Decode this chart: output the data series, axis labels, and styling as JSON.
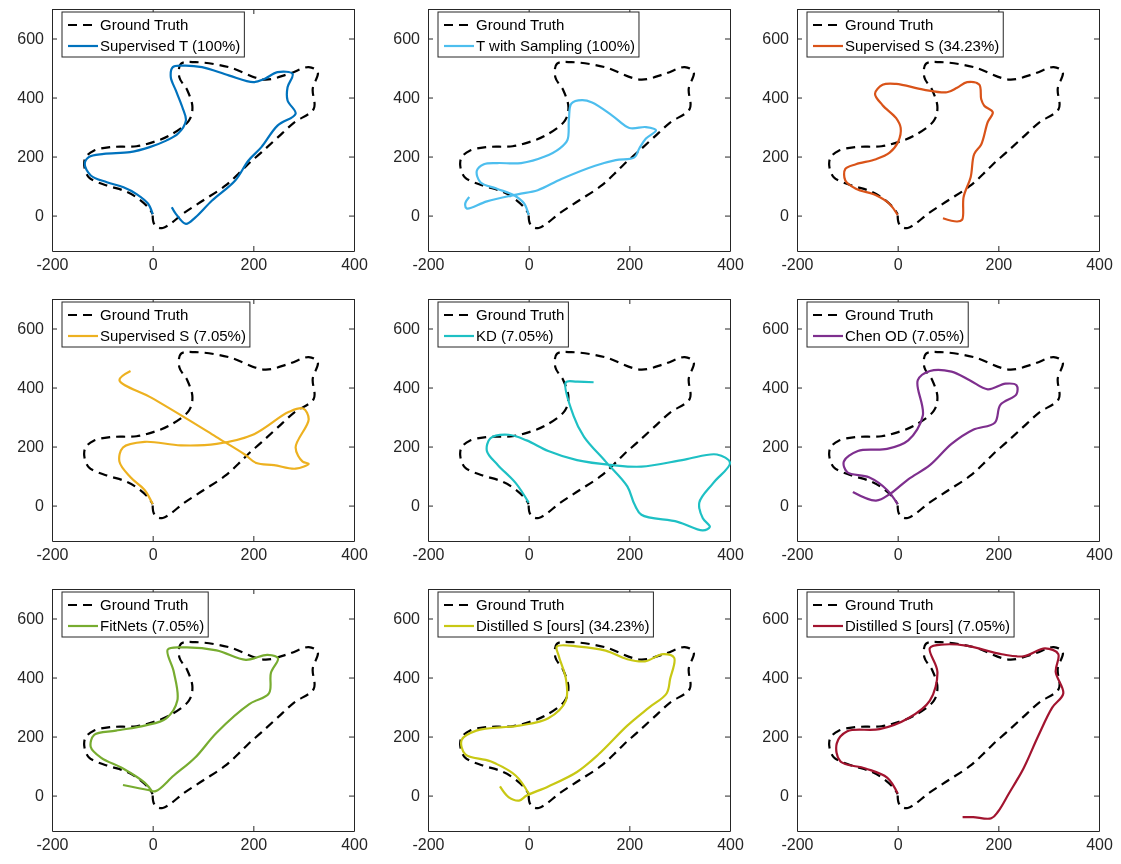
{
  "chart_data": [
    {
      "type": "line",
      "xlim": [
        -200,
        400
      ],
      "ylim": [
        -120,
        700
      ],
      "xticks": [
        -200,
        0,
        200,
        400
      ],
      "yticks": [
        0,
        200,
        400,
        600
      ],
      "legend": "top left",
      "grid": false,
      "series": [
        {
          "name": "Ground Truth",
          "color": "#000000",
          "line_style": "dashed",
          "x": [
            0,
            2,
            10,
            20,
            35,
            60,
            100,
            145,
            170,
            190,
            216,
            248,
            281,
            320,
            318,
            328,
            310,
            270,
            222,
            151,
            85,
            56,
            53,
            69,
            79,
            72,
            33,
            1,
            -32,
            -84,
            -117,
            -133,
            -136,
            -127,
            -91,
            -58,
            -32,
            -9,
            0
          ],
          "values": [
            0,
            -25,
            -40,
            -42,
            -28,
            6,
            51,
            102,
            141,
            175,
            214,
            264,
            315,
            362,
            430,
            486,
            503,
            480,
            461,
            503,
            520,
            514,
            469,
            424,
            367,
            322,
            271,
            249,
            235,
            232,
            220,
            198,
            170,
            130,
            102,
            85,
            62,
            28,
            5
          ]
        },
        {
          "name": "Supervised T (100%)",
          "color": "#0072bd",
          "line_style": "solid",
          "x": [
            0,
            -9,
            -32,
            -58,
            -91,
            -123,
            -135,
            -127,
            -97,
            -45,
            -6,
            27,
            50,
            66,
            59,
            46,
            36,
            40,
            59,
            98,
            151,
            200,
            222,
            248,
            278,
            268,
            268,
            284,
            248,
            216,
            190,
            164,
            118,
            85,
            66,
            46,
            38
          ],
          "values": [
            5,
            40,
            73,
            96,
            113,
            136,
            175,
            198,
            209,
            215,
            232,
            254,
            277,
            322,
            367,
            424,
            469,
            503,
            508,
            503,
            475,
            452,
            463,
            486,
            480,
            435,
            390,
            345,
            305,
            232,
            186,
            119,
            51,
            -6,
            -28,
            6,
            28
          ]
        }
      ]
    },
    {
      "type": "line",
      "xlim": [
        -200,
        400
      ],
      "ylim": [
        -120,
        700
      ],
      "xticks": [
        -200,
        0,
        200,
        400
      ],
      "yticks": [
        0,
        200,
        400,
        600
      ],
      "legend": "top left",
      "grid": false,
      "series": [
        {
          "name": "Ground Truth",
          "color": "#000000",
          "line_style": "dashed",
          "x": [
            0,
            2,
            10,
            20,
            35,
            60,
            100,
            145,
            170,
            190,
            216,
            248,
            281,
            320,
            318,
            328,
            310,
            270,
            222,
            151,
            85,
            56,
            53,
            69,
            79,
            72,
            33,
            1,
            -32,
            -84,
            -117,
            -133,
            -136,
            -127,
            -91,
            -58,
            -32,
            -9,
            0
          ],
          "values": [
            0,
            -25,
            -40,
            -42,
            -28,
            6,
            51,
            102,
            141,
            175,
            214,
            264,
            315,
            362,
            430,
            486,
            503,
            480,
            461,
            503,
            520,
            514,
            469,
            424,
            367,
            322,
            271,
            249,
            235,
            232,
            220,
            198,
            170,
            130,
            102,
            85,
            62,
            28,
            5
          ]
        },
        {
          "name": "T with Sampling (100%)",
          "color": "#4dbeee",
          "line_style": "solid",
          "x": [
            0,
            -9,
            -29,
            -63,
            -96,
            -103,
            -89,
            -62,
            -15,
            32,
            62,
            77,
            80,
            85,
            106,
            126,
            166,
            200,
            233,
            253,
            233,
            220,
            210,
            173,
            132,
            65,
            18,
            -22,
            -83,
            -123,
            -126,
            -118
          ],
          "values": [
            2,
            41,
            69,
            91,
            113,
            152,
            174,
            178,
            178,
            200,
            228,
            256,
            328,
            380,
            391,
            383,
            339,
            297,
            300,
            289,
            261,
            228,
            197,
            188,
            169,
            124,
            86,
            72,
            48,
            24,
            41,
            63
          ]
        }
      ]
    },
    {
      "type": "line",
      "xlim": [
        -200,
        400
      ],
      "ylim": [
        -120,
        700
      ],
      "xticks": [
        -200,
        0,
        200,
        400
      ],
      "yticks": [
        0,
        200,
        400,
        600
      ],
      "legend": "top left",
      "grid": false,
      "series": [
        {
          "name": "Ground Truth",
          "color": "#000000",
          "line_style": "dashed",
          "x": [
            0,
            2,
            10,
            20,
            35,
            60,
            100,
            145,
            170,
            190,
            216,
            248,
            281,
            320,
            318,
            328,
            310,
            270,
            222,
            151,
            85,
            56,
            53,
            69,
            79,
            72,
            33,
            1,
            -32,
            -84,
            -117,
            -133,
            -136,
            -127,
            -91,
            -58,
            -32,
            -9,
            0
          ],
          "values": [
            0,
            -25,
            -40,
            -42,
            -28,
            6,
            51,
            102,
            141,
            175,
            214,
            264,
            315,
            362,
            430,
            486,
            503,
            480,
            461,
            503,
            520,
            514,
            469,
            424,
            367,
            322,
            271,
            249,
            235,
            232,
            220,
            198,
            170,
            130,
            102,
            85,
            62,
            28,
            5
          ]
        },
        {
          "name": "Supervised S (34.23%)",
          "color": "#d95319",
          "line_style": "solid",
          "x": [
            0,
            -17,
            -43,
            -83,
            -104,
            -104,
            -83,
            -43,
            -16,
            1,
            6,
            -3,
            -30,
            -45,
            -30,
            -3,
            51,
            98,
            118,
            138,
            162,
            166,
            172,
            189,
            179,
            166,
            152,
            145,
            131,
            128,
            118,
            90
          ],
          "values": [
            2,
            41,
            69,
            91,
            119,
            158,
            174,
            191,
            213,
            250,
            297,
            330,
            374,
            413,
            443,
            446,
            427,
            418,
            433,
            452,
            444,
            394,
            372,
            350,
            317,
            241,
            208,
            130,
            63,
            -14,
            -20,
            -9
          ]
        }
      ]
    },
    {
      "type": "line",
      "xlim": [
        -200,
        400
      ],
      "ylim": [
        -120,
        700
      ],
      "xticks": [
        -200,
        0,
        200,
        400
      ],
      "yticks": [
        0,
        200,
        400,
        600
      ],
      "legend": "top left",
      "grid": false,
      "series": [
        {
          "name": "Ground Truth",
          "color": "#000000",
          "line_style": "dashed",
          "x": [
            0,
            2,
            10,
            20,
            35,
            60,
            100,
            145,
            170,
            190,
            216,
            248,
            281,
            320,
            318,
            328,
            310,
            270,
            222,
            151,
            85,
            56,
            53,
            69,
            79,
            72,
            33,
            1,
            -32,
            -84,
            -117,
            -133,
            -136,
            -127,
            -91,
            -58,
            -32,
            -9,
            0
          ],
          "values": [
            0,
            -25,
            -40,
            -42,
            -28,
            6,
            51,
            102,
            141,
            175,
            214,
            264,
            315,
            362,
            430,
            486,
            503,
            480,
            461,
            503,
            520,
            514,
            469,
            424,
            367,
            322,
            271,
            249,
            235,
            232,
            220,
            198,
            170,
            130,
            102,
            85,
            62,
            28,
            5
          ]
        },
        {
          "name": "Supervised S (7.05%)",
          "color": "#edb120",
          "line_style": "solid",
          "x": [
            0,
            -16,
            -44,
            -66,
            -59,
            -16,
            56,
            127,
            199,
            270,
            299,
            310,
            284,
            298,
            310,
            284,
            241,
            206,
            183,
            126,
            69,
            -2,
            -66,
            -44
          ],
          "values": [
            5,
            53,
            96,
            149,
            197,
            216,
            204,
            209,
            240,
            317,
            329,
            293,
            197,
            149,
            142,
            125,
            137,
            144,
            173,
            233,
            293,
            365,
            425,
            456
          ]
        }
      ]
    },
    {
      "type": "line",
      "xlim": [
        -200,
        400
      ],
      "ylim": [
        -120,
        700
      ],
      "xticks": [
        -200,
        0,
        200,
        400
      ],
      "yticks": [
        0,
        200,
        400,
        600
      ],
      "legend": "top left",
      "grid": false,
      "series": [
        {
          "name": "Ground Truth",
          "color": "#000000",
          "line_style": "dashed",
          "x": [
            0,
            2,
            10,
            20,
            35,
            60,
            100,
            145,
            170,
            190,
            216,
            248,
            281,
            320,
            318,
            328,
            310,
            270,
            222,
            151,
            85,
            56,
            53,
            69,
            79,
            72,
            33,
            1,
            -32,
            -84,
            -117,
            -133,
            -136,
            -127,
            -91,
            -58,
            -32,
            -9,
            0
          ],
          "values": [
            0,
            -25,
            -40,
            -42,
            -28,
            6,
            51,
            102,
            141,
            175,
            214,
            264,
            315,
            362,
            430,
            486,
            503,
            480,
            461,
            503,
            520,
            514,
            469,
            424,
            367,
            322,
            271,
            249,
            235,
            232,
            220,
            198,
            170,
            130,
            102,
            85,
            62,
            28,
            5
          ]
        },
        {
          "name": "KD (7.05%)",
          "color": "#1ec0c4",
          "line_style": "solid",
          "x": [
            0,
            -26,
            -61,
            -83,
            -76,
            -40,
            -4,
            39,
            96,
            167,
            224,
            310,
            374,
            400,
            367,
            339,
            346,
            360,
            346,
            296,
            224,
            210,
            196,
            153,
            110,
            89,
            74,
            96,
            129
          ],
          "values": [
            10,
            77,
            137,
            185,
            228,
            240,
            221,
            185,
            154,
            137,
            132,
            156,
            173,
            145,
            77,
            10,
            -43,
            -72,
            -84,
            -55,
            -31,
            5,
            65,
            149,
            233,
            305,
            418,
            420,
            418
          ]
        }
      ]
    },
    {
      "type": "line",
      "xlim": [
        -200,
        400
      ],
      "ylim": [
        -120,
        700
      ],
      "xticks": [
        -200,
        0,
        200,
        400
      ],
      "yticks": [
        0,
        200,
        400,
        600
      ],
      "legend": "top left",
      "grid": false,
      "series": [
        {
          "name": "Ground Truth",
          "color": "#000000",
          "line_style": "dashed",
          "x": [
            0,
            2,
            10,
            20,
            35,
            60,
            100,
            145,
            170,
            190,
            216,
            248,
            281,
            320,
            318,
            328,
            310,
            270,
            222,
            151,
            85,
            56,
            53,
            69,
            79,
            72,
            33,
            1,
            -32,
            -84,
            -117,
            -133,
            -136,
            -127,
            -91,
            -58,
            -32,
            -9,
            0
          ],
          "values": [
            0,
            -25,
            -40,
            -42,
            -28,
            6,
            51,
            102,
            141,
            175,
            214,
            264,
            315,
            362,
            430,
            486,
            503,
            480,
            461,
            503,
            520,
            514,
            469,
            424,
            367,
            322,
            271,
            249,
            235,
            232,
            220,
            198,
            170,
            130,
            102,
            85,
            62,
            28,
            5
          ]
        },
        {
          "name": "Chen OD (7.05%)",
          "color": "#7e2f8e",
          "line_style": "solid",
          "x": [
            0,
            -21,
            -57,
            -100,
            -107,
            -79,
            -21,
            21,
            50,
            40,
            64,
            107,
            143,
            179,
            214,
            236,
            236,
            204,
            193,
            150,
            107,
            64,
            21,
            -14,
            -43,
            -89
          ],
          "values": [
            5,
            53,
            96,
            113,
            149,
            185,
            192,
            221,
            305,
            425,
            456,
            454,
            425,
            394,
            413,
            408,
            377,
            341,
            281,
            257,
            209,
            137,
            89,
            41,
            17,
            46
          ]
        }
      ]
    },
    {
      "type": "line",
      "xlim": [
        -200,
        400
      ],
      "ylim": [
        -120,
        700
      ],
      "xticks": [
        -200,
        0,
        200,
        400
      ],
      "yticks": [
        0,
        200,
        400,
        600
      ],
      "legend": "top left",
      "grid": false,
      "series": [
        {
          "name": "Ground Truth",
          "color": "#000000",
          "line_style": "dashed",
          "x": [
            0,
            2,
            10,
            20,
            35,
            60,
            100,
            145,
            170,
            190,
            216,
            248,
            281,
            320,
            318,
            328,
            310,
            270,
            222,
            151,
            85,
            56,
            53,
            69,
            79,
            72,
            33,
            1,
            -32,
            -84,
            -117,
            -133,
            -136,
            -127,
            -91,
            -58,
            -32,
            -9,
            0
          ],
          "values": [
            0,
            -25,
            -40,
            -42,
            -28,
            6,
            51,
            102,
            141,
            175,
            214,
            264,
            315,
            362,
            430,
            486,
            503,
            480,
            461,
            503,
            520,
            514,
            469,
            424,
            367,
            322,
            271,
            249,
            235,
            232,
            220,
            198,
            170,
            130,
            102,
            85,
            62,
            28,
            5
          ]
        },
        {
          "name": "FitNets (7.05%)",
          "color": "#77ac30",
          "line_style": "solid",
          "x": [
            0,
            -16,
            -59,
            -102,
            -123,
            -116,
            -73,
            -16,
            27,
            49,
            42,
            30,
            63,
            127,
            185,
            228,
            249,
            235,
            231,
            192,
            127,
            84,
            42,
            6,
            -9,
            -59
          ],
          "values": [
            12,
            44,
            92,
            128,
            165,
            206,
            220,
            237,
            262,
            322,
            419,
            495,
            502,
            492,
            460,
            477,
            465,
            416,
            346,
            310,
            213,
            128,
            68,
            15,
            19,
            36
          ]
        }
      ]
    },
    {
      "type": "line",
      "xlim": [
        -200,
        400
      ],
      "ylim": [
        -120,
        700
      ],
      "xticks": [
        -200,
        0,
        200,
        400
      ],
      "yticks": [
        0,
        200,
        400,
        600
      ],
      "legend": "top left",
      "grid": false,
      "series": [
        {
          "name": "Ground Truth",
          "color": "#000000",
          "line_style": "dashed",
          "x": [
            0,
            2,
            10,
            20,
            35,
            60,
            100,
            145,
            170,
            190,
            216,
            248,
            281,
            320,
            318,
            328,
            310,
            270,
            222,
            151,
            85,
            56,
            53,
            69,
            79,
            72,
            33,
            1,
            -32,
            -84,
            -117,
            -133,
            -136,
            -127,
            -91,
            -58,
            -32,
            -9,
            0
          ],
          "values": [
            0,
            -25,
            -40,
            -42,
            -28,
            6,
            51,
            102,
            141,
            175,
            214,
            264,
            315,
            362,
            430,
            486,
            503,
            480,
            461,
            503,
            520,
            514,
            469,
            424,
            367,
            322,
            271,
            249,
            235,
            232,
            220,
            198,
            170,
            130,
            102,
            85,
            62,
            28,
            5
          ]
        },
        {
          "name": "Distilled S [ours] (34.23%)",
          "color": "#c8c814",
          "line_style": "solid",
          "x": [
            0,
            -26,
            -76,
            -126,
            -133,
            -104,
            -19,
            39,
            74,
            74,
            60,
            56,
            100,
            153,
            196,
            231,
            267,
            289,
            281,
            274,
            239,
            196,
            139,
            96,
            39,
            -4,
            -19,
            -40,
            -57
          ],
          "values": [
            7,
            68,
            116,
            140,
            189,
            220,
            237,
            262,
            322,
            395,
            472,
            505,
            505,
            491,
            462,
            455,
            479,
            467,
            395,
            346,
            298,
            237,
            140,
            80,
            31,
            0,
            -17,
            -5,
            31
          ]
        }
      ]
    },
    {
      "type": "line",
      "xlim": [
        -200,
        400
      ],
      "ylim": [
        -120,
        700
      ],
      "xticks": [
        -200,
        0,
        200,
        400
      ],
      "yticks": [
        0,
        200,
        400,
        600
      ],
      "legend": "top left",
      "grid": false,
      "series": [
        {
          "name": "Ground Truth",
          "color": "#000000",
          "line_style": "dashed",
          "x": [
            0,
            2,
            10,
            20,
            35,
            60,
            100,
            145,
            170,
            190,
            216,
            248,
            281,
            320,
            318,
            328,
            310,
            270,
            222,
            151,
            85,
            56,
            53,
            69,
            79,
            72,
            33,
            1,
            -32,
            -84,
            -117,
            -133,
            -136,
            -127,
            -91,
            -58,
            -32,
            -9,
            0
          ],
          "values": [
            0,
            -25,
            -40,
            -42,
            -28,
            6,
            51,
            102,
            141,
            175,
            214,
            264,
            315,
            362,
            430,
            486,
            503,
            480,
            461,
            503,
            520,
            514,
            469,
            424,
            367,
            322,
            271,
            249,
            235,
            232,
            220,
            198,
            170,
            130,
            102,
            85,
            62,
            28,
            5
          ]
        },
        {
          "name": "Distilled S [ours] (7.05%)",
          "color": "#a2142f",
          "line_style": "solid",
          "x": [
            0,
            -21,
            -64,
            -114,
            -121,
            -100,
            -36,
            21,
            64,
            79,
            64,
            93,
            136,
            207,
            250,
            293,
            319,
            314,
            329,
            307,
            279,
            250,
            221,
            200,
            186,
            150,
            129
          ],
          "values": [
            7,
            61,
            92,
            116,
            177,
            218,
            225,
            262,
            322,
            419,
            500,
            512,
            508,
            479,
            472,
            499,
            480,
            419,
            346,
            298,
            201,
            92,
            7,
            -53,
            -77,
            -73,
            -73
          ]
        }
      ]
    }
  ]
}
